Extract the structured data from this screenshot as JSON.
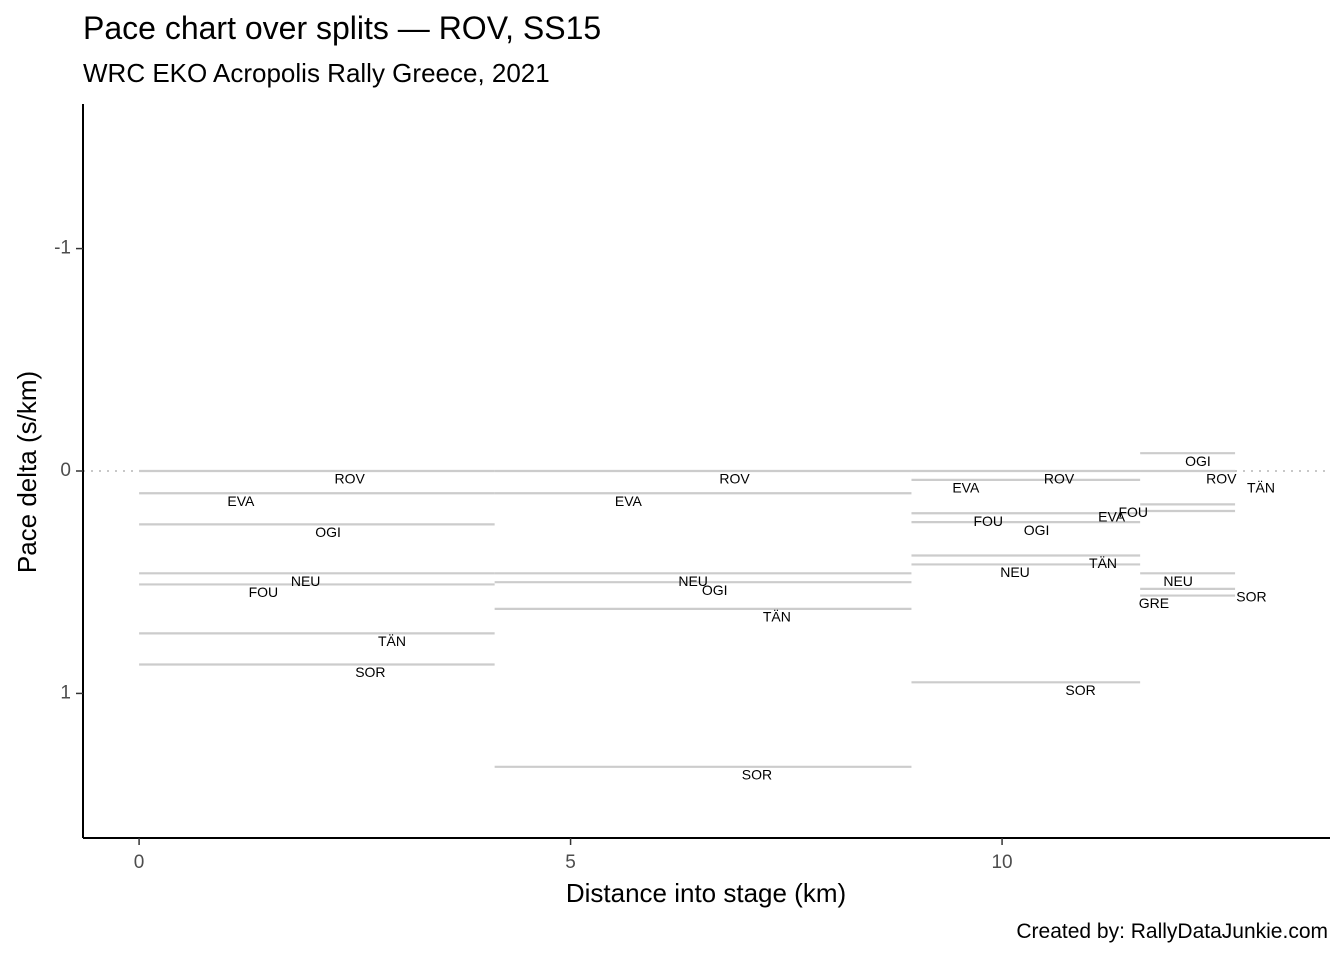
{
  "chart_data": {
    "type": "line",
    "title": "Pace chart over splits — ROV, SS15",
    "subtitle": "WRC EKO Acropolis Rally Greece, 2021",
    "xlabel": "Distance into stage (km)",
    "ylabel": "Pace delta (s/km)",
    "xlim": [
      -0.65,
      13.8
    ],
    "ylim": [
      -1.65,
      1.65
    ],
    "y_reversed": true,
    "x_ticks": [
      0,
      5,
      10
    ],
    "x_tick_labels": [
      "0",
      "5",
      "10"
    ],
    "y_ticks": [
      -1,
      0,
      1
    ],
    "y_tick_labels": [
      "-1",
      "0",
      "1"
    ],
    "reference_line": {
      "y": 0,
      "style": "dotted"
    },
    "grid": false,
    "segment_color": "#cccccc",
    "segments": [
      {
        "driver": "ROV",
        "x0": 0,
        "x1": 4.12,
        "y": 0.0
      },
      {
        "driver": "EVA",
        "x0": 0,
        "x1": 4.12,
        "y": 0.1
      },
      {
        "driver": "OGI",
        "x0": 0,
        "x1": 4.12,
        "y": 0.24
      },
      {
        "driver": "NEU",
        "x0": 0,
        "x1": 4.12,
        "y": 0.46
      },
      {
        "driver": "FOU",
        "x0": 0,
        "x1": 4.12,
        "y": 0.51
      },
      {
        "driver": "TÄN",
        "x0": 0,
        "x1": 4.12,
        "y": 0.73
      },
      {
        "driver": "SOR",
        "x0": 0,
        "x1": 4.12,
        "y": 0.87
      },
      {
        "driver": "ROV",
        "x0": 4.12,
        "x1": 8.95,
        "y": 0.0
      },
      {
        "driver": "EVA",
        "x0": 4.12,
        "x1": 8.95,
        "y": 0.1
      },
      {
        "driver": "NEU",
        "x0": 4.12,
        "x1": 8.95,
        "y": 0.46
      },
      {
        "driver": "OGI",
        "x0": 4.12,
        "x1": 8.95,
        "y": 0.5
      },
      {
        "driver": "TÄN",
        "x0": 4.12,
        "x1": 8.95,
        "y": 0.62
      },
      {
        "driver": "SOR",
        "x0": 4.12,
        "x1": 8.95,
        "y": 1.33
      },
      {
        "driver": "ROV",
        "x0": 8.95,
        "x1": 11.6,
        "y": 0.0
      },
      {
        "driver": "EVA",
        "x0": 8.95,
        "x1": 11.6,
        "y": 0.04
      },
      {
        "driver": "FOU",
        "x0": 8.95,
        "x1": 11.6,
        "y": 0.19
      },
      {
        "driver": "OGI",
        "x0": 8.95,
        "x1": 11.6,
        "y": 0.23
      },
      {
        "driver": "TÄN",
        "x0": 8.95,
        "x1": 11.6,
        "y": 0.38
      },
      {
        "driver": "NEU",
        "x0": 8.95,
        "x1": 11.6,
        "y": 0.42
      },
      {
        "driver": "SOR",
        "x0": 8.95,
        "x1": 11.6,
        "y": 0.95
      },
      {
        "driver": "OGI",
        "x0": 11.6,
        "x1": 12.7,
        "y": -0.08
      },
      {
        "driver": "ROV",
        "x0": 11.6,
        "x1": 12.7,
        "y": 0.0
      },
      {
        "driver": "EVA",
        "x0": 11.6,
        "x1": 12.7,
        "y": 0.15
      },
      {
        "driver": "FOU",
        "x0": 11.6,
        "x1": 12.7,
        "y": 0.18
      },
      {
        "driver": "NEU",
        "x0": 11.6,
        "x1": 12.7,
        "y": 0.46
      },
      {
        "driver": "GRE",
        "x0": 11.6,
        "x1": 12.7,
        "y": 0.53
      },
      {
        "driver": "SOR",
        "x0": 11.6,
        "x1": 12.7,
        "y": 0.56
      }
    ],
    "labels": [
      {
        "text": "ROV",
        "x": 2.44,
        "y": 0.04
      },
      {
        "text": "EVA",
        "x": 1.18,
        "y": 0.14
      },
      {
        "text": "OGI",
        "x": 2.19,
        "y": 0.28
      },
      {
        "text": "NEU",
        "x": 1.93,
        "y": 0.5
      },
      {
        "text": "FOU",
        "x": 1.44,
        "y": 0.55
      },
      {
        "text": "TÄN",
        "x": 2.93,
        "y": 0.77
      },
      {
        "text": "SOR",
        "x": 2.68,
        "y": 0.91
      },
      {
        "text": "ROV",
        "x": 6.9,
        "y": 0.04
      },
      {
        "text": "EVA",
        "x": 5.67,
        "y": 0.14
      },
      {
        "text": "NEU",
        "x": 6.42,
        "y": 0.5
      },
      {
        "text": "OGI",
        "x": 6.67,
        "y": 0.54
      },
      {
        "text": "TÄN",
        "x": 7.39,
        "y": 0.66
      },
      {
        "text": "SOR",
        "x": 7.16,
        "y": 1.37
      },
      {
        "text": "EVA",
        "x": 9.58,
        "y": 0.08
      },
      {
        "text": "ROV",
        "x": 10.66,
        "y": 0.04
      },
      {
        "text": "FOU",
        "x": 9.84,
        "y": 0.23
      },
      {
        "text": "OGI",
        "x": 10.4,
        "y": 0.27
      },
      {
        "text": "EVA",
        "x": 11.27,
        "y": 0.21
      },
      {
        "text": "FOU",
        "x": 11.52,
        "y": 0.19
      },
      {
        "text": "TÄN",
        "x": 11.17,
        "y": 0.42
      },
      {
        "text": "NEU",
        "x": 10.15,
        "y": 0.46
      },
      {
        "text": "SOR",
        "x": 10.91,
        "y": 0.99
      },
      {
        "text": "OGI",
        "x": 12.27,
        "y": -0.04
      },
      {
        "text": "ROV",
        "x": 12.54,
        "y": 0.04
      },
      {
        "text": "TÄN",
        "x": 13.0,
        "y": 0.08
      },
      {
        "text": "NEU",
        "x": 12.04,
        "y": 0.5
      },
      {
        "text": "SOR",
        "x": 12.89,
        "y": 0.57
      },
      {
        "text": "GRE",
        "x": 11.76,
        "y": 0.6
      }
    ]
  },
  "caption": "Created by: RallyDataJunkie.com"
}
